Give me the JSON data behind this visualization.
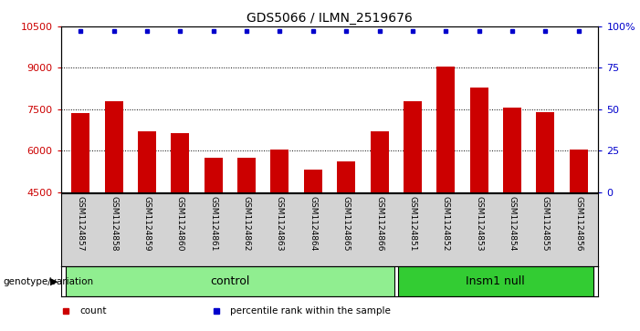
{
  "title": "GDS5066 / ILMN_2519676",
  "samples": [
    "GSM1124857",
    "GSM1124858",
    "GSM1124859",
    "GSM1124860",
    "GSM1124861",
    "GSM1124862",
    "GSM1124863",
    "GSM1124864",
    "GSM1124865",
    "GSM1124866",
    "GSM1124851",
    "GSM1124852",
    "GSM1124853",
    "GSM1124854",
    "GSM1124855",
    "GSM1124856"
  ],
  "counts": [
    7350,
    7800,
    6700,
    6650,
    5750,
    5750,
    6050,
    5300,
    5600,
    6700,
    7800,
    9050,
    8300,
    7550,
    7400,
    6050
  ],
  "groups": [
    {
      "label": "control",
      "start": 0,
      "end": 9,
      "color": "#90ee90"
    },
    {
      "label": "Insm1 null",
      "start": 10,
      "end": 15,
      "color": "#33cc33"
    }
  ],
  "ylim_left": [
    4500,
    10500
  ],
  "yticks_left": [
    4500,
    6000,
    7500,
    9000,
    10500
  ],
  "ylim_right": [
    0,
    100
  ],
  "yticks_right": [
    0,
    25,
    50,
    75,
    100
  ],
  "bar_color": "#cc0000",
  "dot_color": "#0000cc",
  "bar_width": 0.55,
  "grid_dotted_color": "#000000",
  "bg_color_plot": "#ffffff",
  "bg_color_xticklabels": "#d3d3d3",
  "xlabel_fontsize": 6.5,
  "ylabel_left_color": "#cc0000",
  "ylabel_right_color": "#0000cc",
  "legend_items": [
    {
      "label": "count",
      "color": "#cc0000"
    },
    {
      "label": "percentile rank within the sample",
      "color": "#0000cc"
    }
  ],
  "genotype_label": "genotype/variation",
  "group_fontsize": 9,
  "title_fontsize": 10
}
